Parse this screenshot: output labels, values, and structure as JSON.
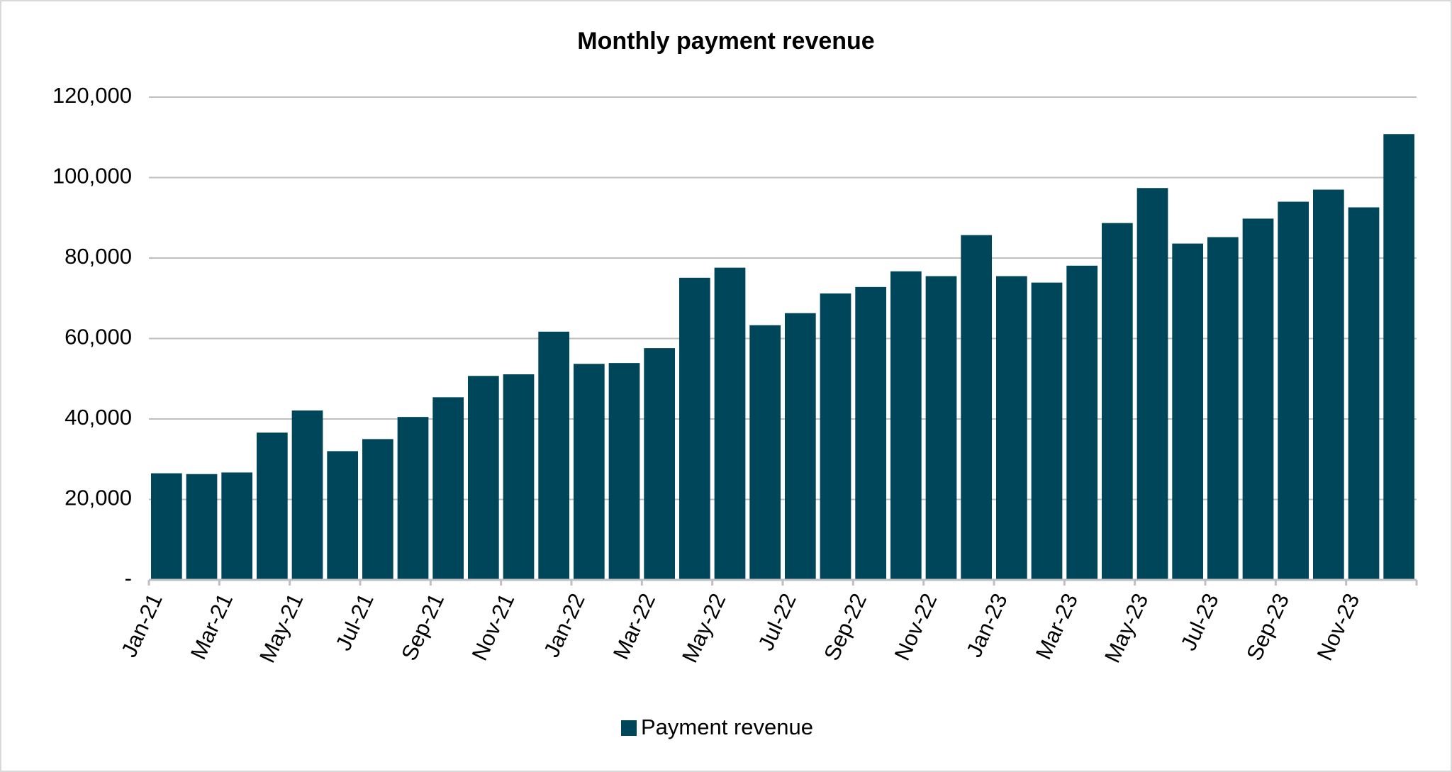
{
  "chart_data": {
    "type": "bar",
    "title": "Monthly payment revenue",
    "categories": [
      "Jan-21",
      null,
      "Mar-21",
      null,
      "May-21",
      null,
      "Jul-21",
      null,
      "Sep-21",
      null,
      "Nov-21",
      null,
      "Jan-22",
      null,
      "Mar-22",
      null,
      "May-22",
      null,
      "Jul-22",
      null,
      "Sep-22",
      null,
      "Nov-22",
      null,
      "Jan-23",
      null,
      "Mar-23",
      null,
      "May-23",
      null,
      "Jul-23",
      null,
      "Sep-23",
      null,
      "Nov-23",
      null
    ],
    "series": [
      {
        "name": "Payment revenue",
        "color": "#00465a",
        "values": [
          26500,
          26300,
          26700,
          36600,
          42100,
          32000,
          35000,
          40500,
          45400,
          50700,
          51100,
          61700,
          53700,
          53900,
          57600,
          75100,
          77600,
          63300,
          66300,
          71200,
          72800,
          76700,
          75500,
          85700,
          75500,
          73900,
          78100,
          88700,
          97400,
          83600,
          85200,
          89800,
          94000,
          97000,
          92600,
          110800
        ]
      }
    ],
    "ylim": [
      0,
      120000
    ],
    "yticks": [
      {
        "value": 0,
        "label": "-"
      },
      {
        "value": 20000,
        "label": "20,000"
      },
      {
        "value": 40000,
        "label": "40,000"
      },
      {
        "value": 60000,
        "label": "60,000"
      },
      {
        "value": 80000,
        "label": "80,000"
      },
      {
        "value": 100000,
        "label": "100,000"
      },
      {
        "value": 120000,
        "label": "120,000"
      }
    ],
    "grid": true,
    "legend": "bottom"
  }
}
